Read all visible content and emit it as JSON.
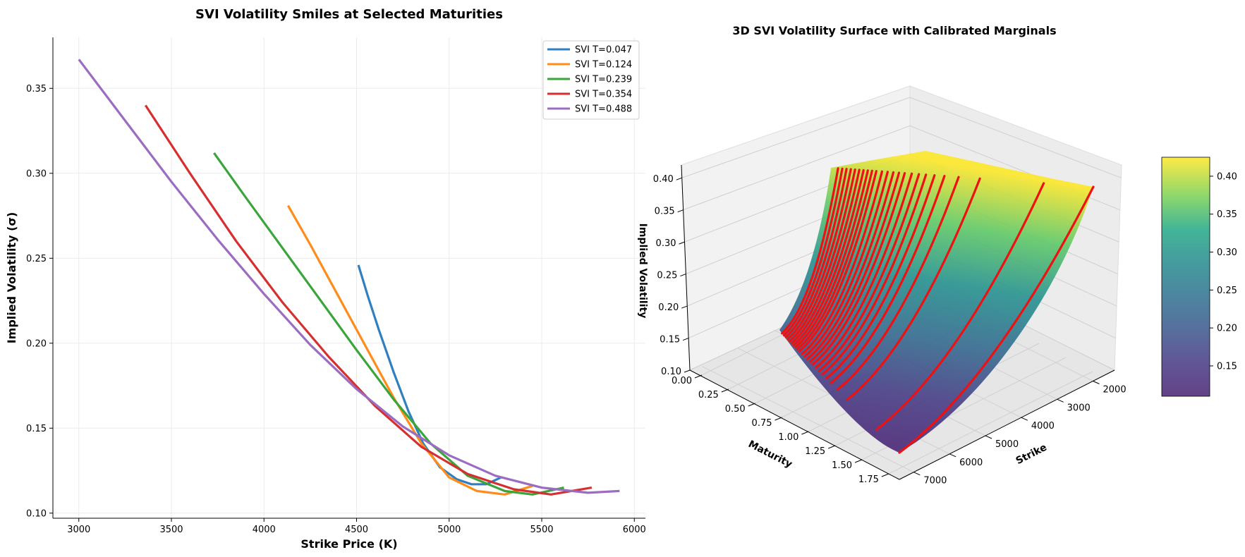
{
  "chart_data": [
    {
      "type": "line",
      "title": "SVI Volatility Smiles at Selected Maturities",
      "xlabel": "Strike Price (K)",
      "ylabel": "Implied Volatility (σ)",
      "xlim": [
        2860,
        6060
      ],
      "ylim": [
        0.097,
        0.38
      ],
      "xticks": [
        3000,
        3500,
        4000,
        4500,
        5000,
        5500,
        6000
      ],
      "yticks": [
        0.1,
        0.15,
        0.2,
        0.25,
        0.3,
        0.35
      ],
      "ytick_labels": [
        "0.10",
        "0.15",
        "0.20",
        "0.25",
        "0.30",
        "0.35"
      ],
      "grid": true,
      "legend_position": "top-right",
      "series": [
        {
          "name": "SVI T=0.047",
          "color": "#2f7fc1",
          "x": [
            4510,
            4560,
            4620,
            4700,
            4780,
            4860,
            4950,
            5040,
            5120,
            5200,
            5280
          ],
          "y": [
            0.246,
            0.228,
            0.208,
            0.183,
            0.16,
            0.141,
            0.127,
            0.12,
            0.117,
            0.117,
            0.121
          ]
        },
        {
          "name": "SVI T=0.124",
          "color": "#ff8c1a",
          "x": [
            4130,
            4250,
            4400,
            4550,
            4700,
            4850,
            5000,
            5150,
            5300,
            5450
          ],
          "y": [
            0.281,
            0.258,
            0.228,
            0.198,
            0.168,
            0.141,
            0.121,
            0.113,
            0.111,
            0.116
          ]
        },
        {
          "name": "SVI T=0.239",
          "color": "#3aa53a",
          "x": [
            3730,
            3900,
            4100,
            4300,
            4500,
            4700,
            4900,
            5100,
            5300,
            5450,
            5620
          ],
          "y": [
            0.312,
            0.286,
            0.256,
            0.226,
            0.196,
            0.167,
            0.141,
            0.122,
            0.113,
            0.111,
            0.115
          ]
        },
        {
          "name": "SVI T=0.354",
          "color": "#d62f2f",
          "x": [
            3360,
            3600,
            3850,
            4100,
            4350,
            4600,
            4850,
            5100,
            5350,
            5550,
            5770
          ],
          "y": [
            0.34,
            0.3,
            0.26,
            0.224,
            0.192,
            0.163,
            0.139,
            0.123,
            0.114,
            0.111,
            0.115
          ]
        },
        {
          "name": "SVI T=0.488",
          "color": "#9b6cc1",
          "x": [
            3000,
            3250,
            3500,
            3750,
            4000,
            4250,
            4500,
            4750,
            5000,
            5250,
            5500,
            5750,
            5920
          ],
          "y": [
            0.367,
            0.331,
            0.295,
            0.261,
            0.229,
            0.199,
            0.173,
            0.151,
            0.134,
            0.122,
            0.115,
            0.112,
            0.113
          ]
        }
      ]
    },
    {
      "type": "surface3d",
      "title": "3D SVI Volatility Surface with Calibrated Marginals",
      "xlabel": "Maturity",
      "ylabel": "Strike",
      "zlabel": "Implied Volatility",
      "xlim": [
        0,
        1.85
      ],
      "ylim": [
        1400,
        7400
      ],
      "zlim": [
        0.1,
        0.42
      ],
      "xtick_labels": [
        "0.00",
        "0.25",
        "0.50",
        "0.75",
        "1.00",
        "1.25",
        "1.50",
        "1.75"
      ],
      "ytick_labels": [
        "2000",
        "3000",
        "4000",
        "5000",
        "6000",
        "7000"
      ],
      "ztick_labels": [
        "0.10",
        "0.15",
        "0.20",
        "0.25",
        "0.30",
        "0.35",
        "0.40"
      ],
      "colormap": "viridis",
      "colorbar": {
        "min": 0.11,
        "max": 0.425,
        "tick_labels": [
          "0.15",
          "0.20",
          "0.25",
          "0.30",
          "0.35",
          "0.40"
        ]
      },
      "marginal_color": "#ee1111",
      "marginal_maturities": [
        0.05,
        0.08,
        0.11,
        0.14,
        0.17,
        0.2,
        0.23,
        0.26,
        0.29,
        0.32,
        0.36,
        0.4,
        0.44,
        0.48,
        0.52,
        0.57,
        0.62,
        0.67,
        0.73,
        0.8,
        0.9,
        1.05,
        1.5,
        1.85
      ]
    }
  ]
}
